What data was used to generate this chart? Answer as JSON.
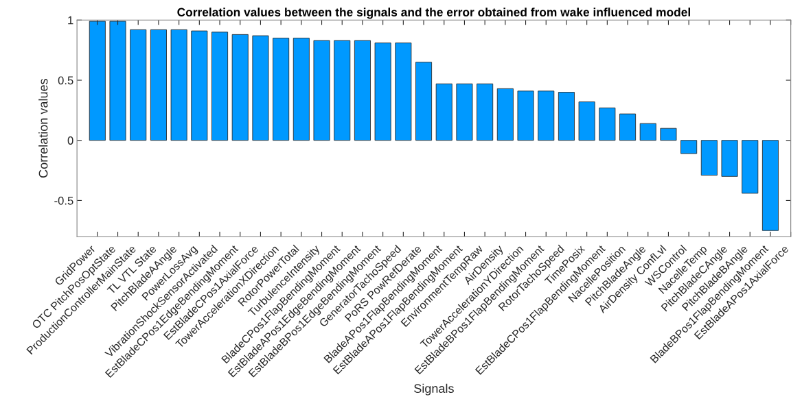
{
  "chart_data": {
    "type": "bar",
    "title": "Correlation values between the signals and the error obtained from wake influenced model",
    "xlabel": "Signals",
    "ylabel": "Correlation values",
    "categories": [
      "GridPower",
      "OTC PitchPosOptState",
      "ProductionControllerMainState",
      "TL VTL State",
      "PitchBladeAAngle",
      "PowerLossAvg",
      "VibrationShockSensorActivated",
      "EstBladeCPos1EdgeBendingMoment",
      "EstBladeCPos1AxialForce",
      "TowerAccelerationXDirection",
      "RotorPowerTotal",
      "TurbulenceIntensity",
      "BladeCPos1FlapBendingMoment",
      "EstBladeAPos1EdgeBendingMoment",
      "EstBladeBPos1EdgeBendingMoment",
      "GeneratorTachoSpeed",
      "PoRS PowRefDerate",
      "BladeAPos1FlapBendingMoment",
      "EstBladeAPos1FlapBendingMoment",
      "EnvironmentTempRaw",
      "AirDensity",
      "TowerAccelerationYDirection",
      "EstBladeBPos1FlapBendingMoment",
      "RotorTachoSpeed",
      "TimePosix",
      "EstBladeCPos1FlapBendingMoment",
      "NacellePosition",
      "PitchBladeAngle",
      "AirDensity ConfLvl",
      "WSControl",
      "NacelleTemp",
      "PitchBladeCAngle",
      "PitchBladeBAngle",
      "BladeBPos1FlapBendingMoment",
      "EstBladeAPos1AxialForce"
    ],
    "values": [
      0.99,
      0.99,
      0.92,
      0.92,
      0.92,
      0.91,
      0.9,
      0.88,
      0.87,
      0.85,
      0.85,
      0.83,
      0.83,
      0.83,
      0.81,
      0.81,
      0.65,
      0.47,
      0.47,
      0.47,
      0.43,
      0.41,
      0.41,
      0.4,
      0.32,
      0.27,
      0.22,
      0.14,
      0.1,
      -0.11,
      -0.29,
      -0.3,
      -0.44,
      -0.75,
      null
    ],
    "color": "#0099ff",
    "ylim": [
      -0.8,
      1
    ],
    "yticks": [
      -0.5,
      0,
      0.5,
      1
    ],
    "grid": false
  }
}
